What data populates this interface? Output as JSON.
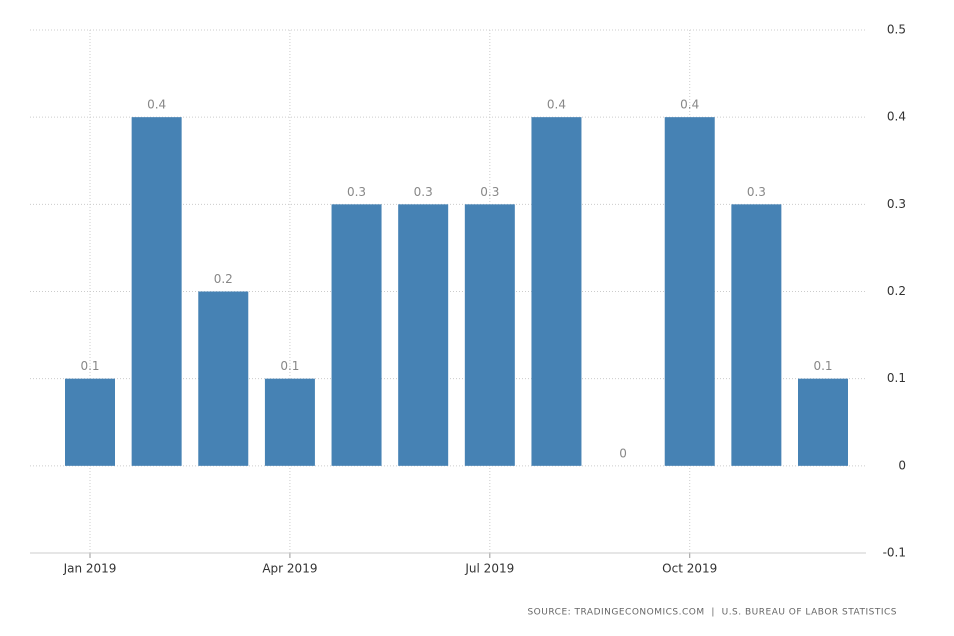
{
  "chart_data": {
    "type": "bar",
    "categories": [
      "Jan 2019",
      null,
      null,
      "Apr 2019",
      null,
      null,
      "Jul 2019",
      null,
      null,
      "Oct 2019",
      null,
      null
    ],
    "values": [
      0.1,
      0.4,
      0.2,
      0.1,
      0.3,
      0.3,
      0.3,
      0.4,
      0,
      0.4,
      0.3,
      0.1
    ],
    "color": "#4682b4",
    "ylim": [
      -0.1,
      0.5
    ],
    "yticks": [
      -0.1,
      0,
      0.1,
      0.2,
      0.3,
      0.4,
      0.5
    ],
    "grid": true,
    "source": "SOURCE: TRADINGECONOMICS.COM  |  U.S. BUREAU OF LABOR STATISTICS"
  }
}
